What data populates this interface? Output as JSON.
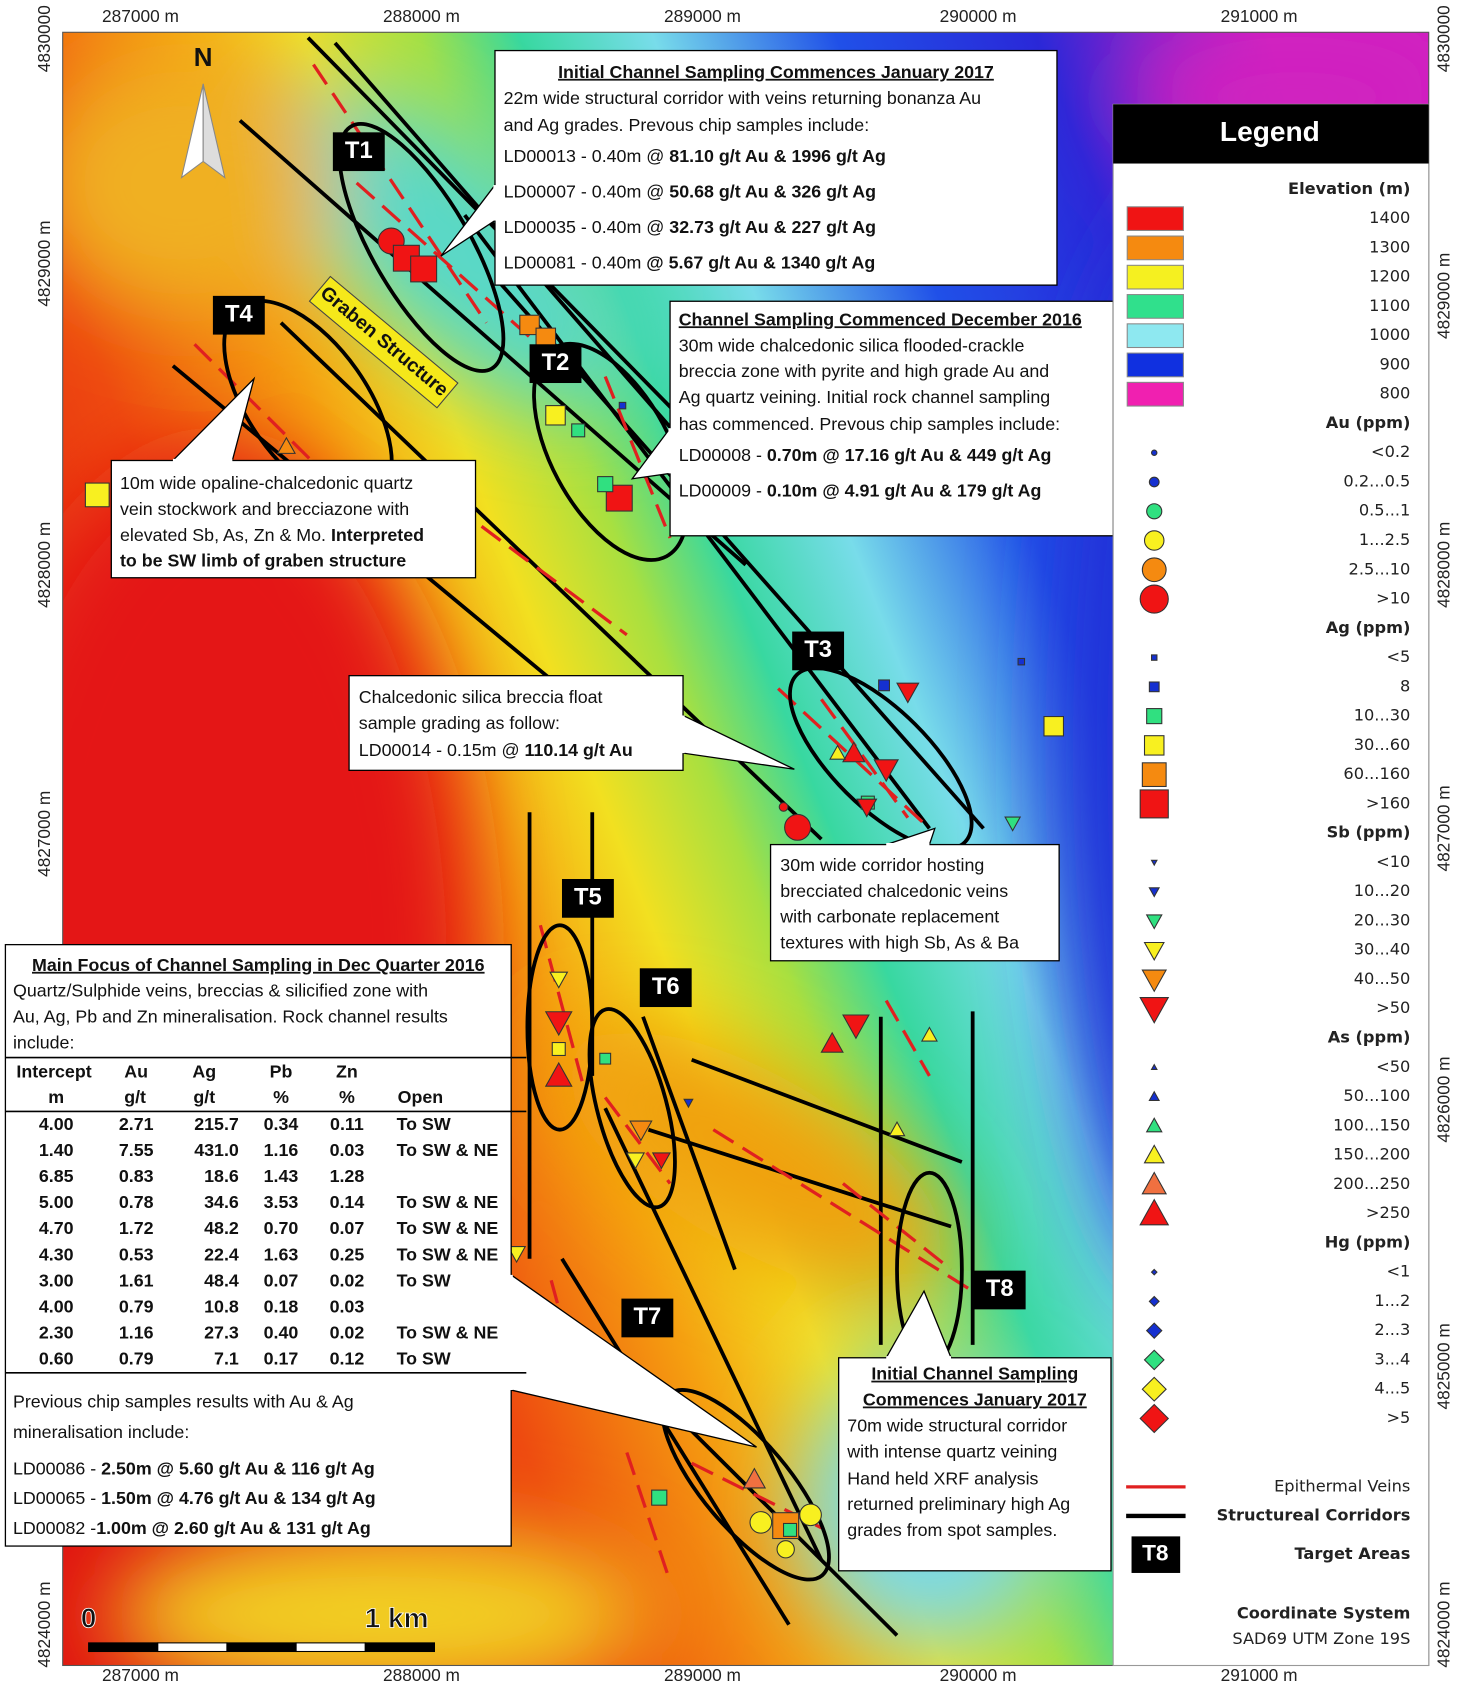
{
  "axis_labels": {
    "top": [
      "287000 m",
      "288000 m",
      "289000 m",
      "290000 m",
      "291000 m"
    ],
    "bottom": [
      "287000 m",
      "288000 m",
      "289000 m",
      "290000 m",
      "291000 m"
    ],
    "left": [
      "4830000",
      "4829000 m",
      "4828000 m",
      "4827000 m",
      "4824000 m"
    ],
    "right": [
      "4830000",
      "4829000 m",
      "4828000 m",
      "4827000 m",
      "4826000 m",
      "4825000 m",
      "4824000 m"
    ]
  },
  "north": "N",
  "scale_bar": {
    "start": "0",
    "end": "1 km"
  },
  "graben_label": "Graben Structure",
  "targets": [
    "T1",
    "T2",
    "T3",
    "T4",
    "T5",
    "T6",
    "T7",
    "T8"
  ],
  "callouts": [
    {
      "title": "Initial Channel Sampling Commences January 2017",
      "lines": [
        {
          "text": "22m wide structural corridor with veins returning bonanza Au"
        },
        {
          "text": "and Ag grades.  Prevous chip samples  include:"
        },
        {
          "text": "LD00013 - 0.40m @ ",
          "bold": "81.10 g/t Au & 1996 g/t Ag"
        },
        {
          "text": "LD00007 - 0.40m @ ",
          "bold": "50.68 g/t Au & 326 g/t Ag"
        },
        {
          "text": "LD00035 - 0.40m @ ",
          "bold": "32.73 g/t Au & 227 g/t Ag"
        },
        {
          "text": "LD00081 - 0.40m ",
          "bold": "@ 5.67 g/t Au & 1340 g/t Ag"
        }
      ]
    },
    {
      "title": "Channel Sampling Commenced December 2016",
      "lines": [
        {
          "text": "30m wide chalcedonic silica flooded-crackle"
        },
        {
          "text": "breccia zone with pyrite and high grade Au and"
        },
        {
          "text": "Ag quartz veining. Initial rock channel sampling"
        },
        {
          "text": "has commenced.  Prevous chip samples  include:"
        },
        {
          "text": "LD00008 - ",
          "bold": "0.70m @ 17.16 g/t Au & 449 g/t Ag"
        },
        {
          "text": "LD00009 - ",
          "bold": "0.10m @ 4.91 g/t Au & 179 g/t Ag"
        }
      ]
    },
    {
      "lines": [
        {
          "text": "10m wide opaline-chalcedonic quartz"
        },
        {
          "text": "vein stockwork and brecciazone with"
        },
        {
          "text": "elevated Sb, As, Zn & Mo. ",
          "bold": "Interpreted"
        },
        {
          "bold": "to be SW limb of graben structure"
        }
      ]
    },
    {
      "lines": [
        {
          "text": "Chalcedonic silica breccia float"
        },
        {
          "text": "sample grading as follow:"
        },
        {
          "text": "LD00014 - 0.15m @ ",
          "bold": "110.14 g/t Au"
        }
      ]
    },
    {
      "lines": [
        {
          "text": "30m wide corridor hosting"
        },
        {
          "text": "brecciated chalcedonic veins"
        },
        {
          "text": "with carbonate replacement"
        },
        {
          "text": "textures with high Sb, As & Ba"
        }
      ]
    },
    {
      "title_lines": [
        "Initial Channel Sampling",
        "Commences January 2017"
      ],
      "lines": [
        {
          "text": "70m wide structural corridor"
        },
        {
          "text": "with intense quartz veining"
        },
        {
          "text": "Hand held XRF analysis"
        },
        {
          "text": "returned preliminary high Ag"
        },
        {
          "text": "grades from spot samples."
        }
      ]
    }
  ],
  "main_focus": {
    "title": "Main Focus of Channel Sampling in Dec Quarter 2016",
    "description": [
      "Quartz/Sulphide veins, breccias & silicified zone with",
      "Au, Ag, Pb and Zn mineralisation. Rock channel results",
      "include:"
    ],
    "table": {
      "header": [
        [
          "Intercept",
          "Au",
          "Ag",
          "Pb",
          "Zn"
        ],
        [
          "m",
          "g/t",
          "g/t",
          "%",
          "%",
          "Open"
        ]
      ],
      "rows": [
        [
          "4.00",
          "2.71",
          "215.7",
          "0.34",
          "0.11",
          "To SW"
        ],
        [
          "1.40",
          "7.55",
          "431.0",
          "1.16",
          "0.03",
          "To SW & NE"
        ],
        [
          "6.85",
          "0.83",
          "18.6",
          "1.43",
          "1.28"
        ],
        [
          "5.00",
          "0.78",
          "34.6",
          "3.53",
          "0.14",
          "To SW & NE"
        ],
        [
          "4.70",
          "1.72",
          "48.2",
          "0.70",
          "0.07",
          "To SW & NE"
        ],
        [
          "4.30",
          "0.53",
          "22.4",
          "1.63",
          "0.25",
          "To SW & NE"
        ],
        [
          "3.00",
          "1.61",
          "48.4",
          "0.07",
          "0.02",
          "To SW"
        ],
        [
          "4.00",
          "0.79",
          "10.8",
          "0.18",
          "0.03"
        ],
        [
          "2.30",
          "1.16",
          "27.3",
          "0.40",
          "0.02",
          "To SW & NE"
        ],
        [
          "0.60",
          "0.79",
          "7.1",
          "0.17",
          "0.12",
          "To SW"
        ]
      ]
    },
    "chip_intro": [
      "Previous chip samples results with Au & Ag",
      "mineralisation include:"
    ],
    "chip_samples": [
      {
        "text": "LD00086 - ",
        "bold": "2.50m @ 5.60 g/t Au & 116 g/t Ag"
      },
      {
        "text": "LD00065 - ",
        "bold": "1.50m @ 4.76 g/t Au & 134 g/t Ag"
      },
      {
        "text": "LD00082 -",
        "bold": "1.00m @ 2.60 g/t Au & 131 g/t Ag"
      }
    ]
  },
  "legend": {
    "title": "Legend",
    "sections": [
      {
        "title": "Elevation (m)",
        "symbol": "swatch",
        "items": [
          {
            "label": "1400",
            "color": "#f01414"
          },
          {
            "label": "1300",
            "color": "#f58a10"
          },
          {
            "label": "1200",
            "color": "#f5f020"
          },
          {
            "label": "1100",
            "color": "#30e08c"
          },
          {
            "label": "1000",
            "color": "#8ee8f0"
          },
          {
            "label": "900",
            "color": "#1030e0"
          },
          {
            "label": "800",
            "color": "#f020b0"
          }
        ]
      },
      {
        "title": "Au (ppm)",
        "symbol": "circle",
        "items": [
          {
            "label": "<0.2",
            "color": "#1530d0"
          },
          {
            "label": "0.2...0.5",
            "color": "#1530d0"
          },
          {
            "label": "0.5...1",
            "color": "#30e080"
          },
          {
            "label": "1...2.5",
            "color": "#f8f020"
          },
          {
            "label": "2.5...10",
            "color": "#f58a10"
          },
          {
            "label": ">10",
            "color": "#f01414"
          }
        ]
      },
      {
        "title": "Ag (ppm)",
        "symbol": "square",
        "items": [
          {
            "label": "<5",
            "color": "#1530d0"
          },
          {
            "label": "8",
            "color": "#1530d0"
          },
          {
            "label": "10...30",
            "color": "#30e080"
          },
          {
            "label": "30...60",
            "color": "#f8f020"
          },
          {
            "label": "60...160",
            "color": "#f58a10"
          },
          {
            "label": ">160",
            "color": "#f01414"
          }
        ]
      },
      {
        "title": "Sb (ppm)",
        "symbol": "down-triangle",
        "items": [
          {
            "label": "<10",
            "color": "#1530d0"
          },
          {
            "label": "10...20",
            "color": "#1530d0"
          },
          {
            "label": "20...30",
            "color": "#30e080"
          },
          {
            "label": "30...40",
            "color": "#f8f020"
          },
          {
            "label": "40...50",
            "color": "#f58a10"
          },
          {
            "label": ">50",
            "color": "#f01414"
          }
        ]
      },
      {
        "title": "As (ppm)",
        "symbol": "triangle",
        "items": [
          {
            "label": "<50",
            "color": "#1530d0"
          },
          {
            "label": "50...100",
            "color": "#1530d0"
          },
          {
            "label": "100...150",
            "color": "#30e080"
          },
          {
            "label": "150...200",
            "color": "#f8f020"
          },
          {
            "label": "200...250",
            "color": "#f07040"
          },
          {
            "label": ">250",
            "color": "#f01414"
          }
        ]
      },
      {
        "title": "Hg (ppm)",
        "symbol": "diamond",
        "items": [
          {
            "label": "<1",
            "color": "#1530d0"
          },
          {
            "label": "1...2",
            "color": "#1530d0"
          },
          {
            "label": "2...3",
            "color": "#1530d0"
          },
          {
            "label": "3...4",
            "color": "#30e080"
          },
          {
            "label": "4...5",
            "color": "#f8f020"
          },
          {
            "label": ">5",
            "color": "#f01414"
          }
        ]
      }
    ],
    "lines": [
      {
        "label": "Epithermal Veins",
        "color": "#e02020"
      },
      {
        "label": "Structureal Corridors",
        "color": "#000000"
      }
    ],
    "target": {
      "symbol": "T8",
      "label": "Target Areas"
    },
    "coordinate_system": {
      "title": "Coordinate System",
      "value": "SAD69 UTM Zone 19S"
    }
  }
}
